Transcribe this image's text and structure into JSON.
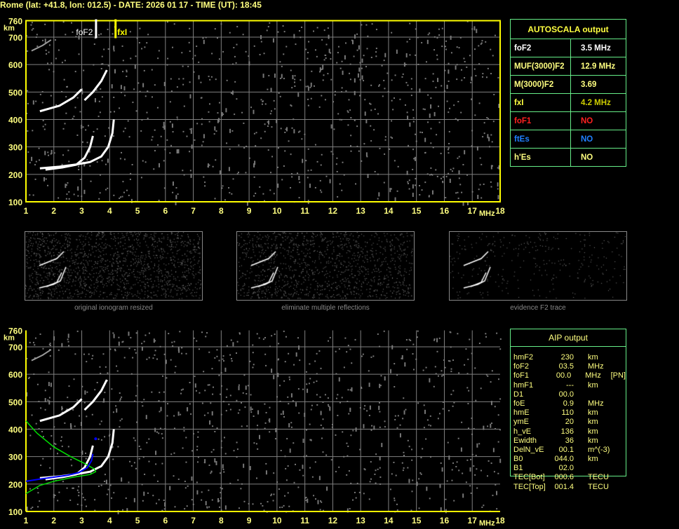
{
  "title": "Rome (lat: +41.8, lon: 012.5) - DATE: 2026 01 17 - TIME (UT): 18:45",
  "axes": {
    "x_ticks": [
      1,
      2,
      3,
      4,
      5,
      6,
      7,
      8,
      9,
      10,
      11,
      12,
      13,
      14,
      15,
      16,
      17,
      18
    ],
    "x_unit": "MHz",
    "y_ticks": [
      100,
      200,
      300,
      400,
      500,
      600,
      700,
      760
    ],
    "y_unit": "km"
  },
  "markers": {
    "foF2": {
      "label": "foF2",
      "freq": 3.5
    },
    "fxI": {
      "label": "fxI",
      "freq": 4.2
    }
  },
  "autoscala": {
    "title": "AUTOSCALA output",
    "rows": [
      {
        "key": "foF2",
        "value": "3.5 MHz",
        "color": "#ffffff",
        "vcolor": "#ffffff"
      },
      {
        "key": "MUF(3000)F2",
        "value": "12.9 MHz",
        "color": "#ffff80",
        "vcolor": "#ffff80"
      },
      {
        "key": "M(3000)F2",
        "value": "3.69",
        "color": "#ffff80",
        "vcolor": "#ffff80"
      },
      {
        "key": "fxI",
        "value": "4.2 MHz",
        "color": "#ffff40",
        "vcolor": "#cccc00"
      },
      {
        "key": "foF1",
        "value": "NO",
        "color": "#ff2020",
        "vcolor": "#ff2020"
      },
      {
        "key": "ftEs",
        "value": "NO",
        "color": "#2080ff",
        "vcolor": "#2080ff"
      },
      {
        "key": "h'Es",
        "value": "NO",
        "color": "#ffff80",
        "vcolor": "#ffff80"
      }
    ]
  },
  "thumbnails": [
    {
      "label": "original ionogram resized"
    },
    {
      "label": "eliminate multiple reflections"
    },
    {
      "label": "evidence F2 trace"
    }
  ],
  "aip": {
    "title": "AIP output",
    "rows": [
      [
        "hmF2",
        "230",
        "km",
        ""
      ],
      [
        "foF2",
        "03.5",
        "MHz",
        ""
      ],
      [
        "foF1",
        "00.0",
        "MHz",
        "[PN]"
      ],
      [
        "hmF1",
        "---",
        "km",
        ""
      ],
      [
        "D1",
        "00.0",
        "",
        ""
      ],
      [
        "foE",
        "0.9",
        "MHz",
        ""
      ],
      [
        "hmE",
        "110",
        "km",
        ""
      ],
      [
        "ymE",
        "20",
        "km",
        ""
      ],
      [
        "h_vE",
        "136",
        "km",
        ""
      ],
      [
        "Ewidth",
        "36",
        "km",
        ""
      ],
      [
        "DelN_vE",
        "00.1",
        "m^(-3)",
        ""
      ],
      [
        "B0",
        "044.0",
        "km",
        ""
      ],
      [
        "B1",
        "02.0",
        "",
        ""
      ],
      [
        "TEC[Bot]",
        "000.6",
        "TECU",
        ""
      ],
      [
        "TEC[Top]",
        "001.4",
        "TECU",
        ""
      ]
    ]
  },
  "colors": {
    "frame": "#ffff00",
    "grid": "#808080",
    "table_border": "#66ee88",
    "profile": "#00e000",
    "fit": "#0000ff",
    "text": "#ffff80"
  }
}
